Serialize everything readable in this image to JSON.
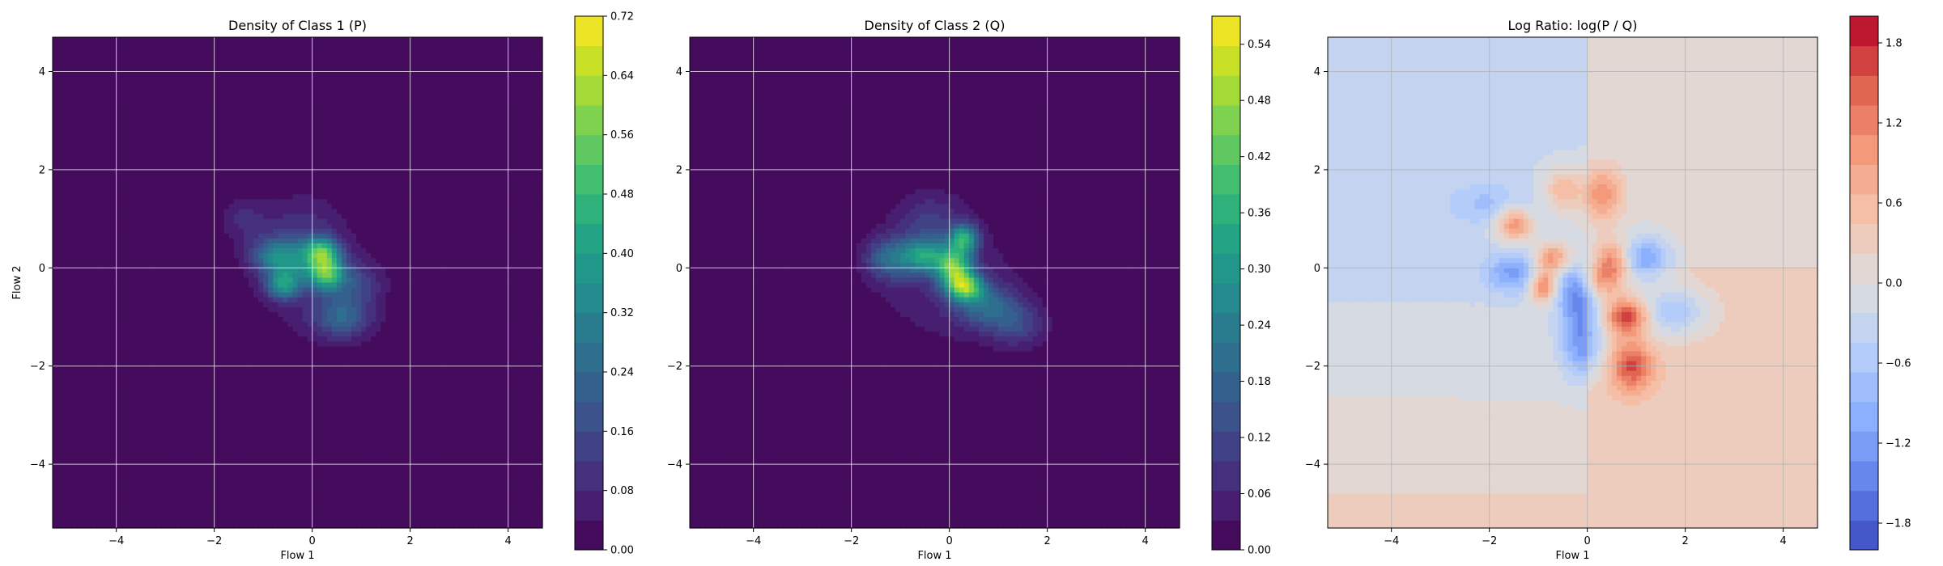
{
  "chart_data": [
    {
      "type": "heatmap",
      "title": "Density of Class 1 (P)",
      "xlabel": "Flow 1",
      "ylabel": "Flow 2",
      "xlim": [
        -5.3,
        4.7
      ],
      "ylim": [
        -5.3,
        4.7
      ],
      "xticks": [
        -4,
        -2,
        0,
        2,
        4
      ],
      "yticks": [
        -4,
        -2,
        0,
        2,
        4
      ],
      "xtick_labels": [
        "−4",
        "−2",
        "0",
        "2",
        "4"
      ],
      "ytick_labels": [
        "−4",
        "−2",
        "0",
        "2",
        "4"
      ],
      "grid": true,
      "colormap": "viridis",
      "colorbar": {
        "range": [
          0,
          0.72
        ],
        "ticks": [
          0,
          0.08,
          0.16,
          0.24,
          0.32,
          0.4,
          0.48,
          0.56,
          0.64,
          0.72
        ],
        "tick_labels": [
          "0.00",
          "0.08",
          "0.16",
          "0.24",
          "0.32",
          "0.40",
          "0.48",
          "0.56",
          "0.64",
          "0.72"
        ]
      },
      "blobs": [
        {
          "x": 0.3,
          "y": -0.1,
          "sx": 0.25,
          "sy": 0.25,
          "value": 0.45
        },
        {
          "x": 0.2,
          "y": 0.35,
          "sx": 0.25,
          "sy": 0.2,
          "value": 0.38
        },
        {
          "x": -0.6,
          "y": -0.35,
          "sx": 0.25,
          "sy": 0.2,
          "value": 0.33
        },
        {
          "x": -0.8,
          "y": 0.25,
          "sx": 0.35,
          "sy": 0.25,
          "value": 0.24
        },
        {
          "x": 0.6,
          "y": -1.0,
          "sx": 0.4,
          "sy": 0.3,
          "value": 0.2
        },
        {
          "x": -0.3,
          "y": 0.1,
          "sx": 0.35,
          "sy": 0.3,
          "value": 0.18
        },
        {
          "x": -1.4,
          "y": 1.0,
          "sx": 0.35,
          "sy": 0.3,
          "value": 0.08
        },
        {
          "x": 0.9,
          "y": -0.3,
          "sx": 0.35,
          "sy": 0.3,
          "value": 0.12
        },
        {
          "x": -0.2,
          "y": 0.8,
          "sx": 0.6,
          "sy": 0.5,
          "value": 0.09
        },
        {
          "x": 0.1,
          "y": -0.5,
          "sx": 1.0,
          "sy": 0.8,
          "value": 0.06
        }
      ]
    },
    {
      "type": "heatmap",
      "title": "Density of Class 2 (Q)",
      "xlabel": "Flow 1",
      "ylabel": "",
      "xlim": [
        -5.3,
        4.7
      ],
      "ylim": [
        -5.3,
        4.7
      ],
      "xticks": [
        -4,
        -2,
        0,
        2,
        4
      ],
      "yticks": [
        -4,
        -2,
        0,
        2,
        4
      ],
      "xtick_labels": [
        "−4",
        "−2",
        "0",
        "2",
        "4"
      ],
      "ytick_labels": [
        "−4",
        "−2",
        "0",
        "2",
        "4"
      ],
      "grid": true,
      "colormap": "viridis",
      "colorbar": {
        "range": [
          0,
          0.57
        ],
        "ticks": [
          0,
          0.06,
          0.12,
          0.18,
          0.24,
          0.3,
          0.36,
          0.42,
          0.48,
          0.54
        ],
        "tick_labels": [
          "0.00",
          "0.06",
          "0.12",
          "0.18",
          "0.24",
          "0.30",
          "0.36",
          "0.42",
          "0.48",
          "0.54"
        ]
      },
      "blobs": [
        {
          "x": 0.1,
          "y": 0.0,
          "sx": 0.25,
          "sy": 0.3,
          "value": 0.38
        },
        {
          "x": 0.35,
          "y": -0.4,
          "sx": 0.25,
          "sy": 0.2,
          "value": 0.34
        },
        {
          "x": 0.3,
          "y": 0.6,
          "sx": 0.2,
          "sy": 0.2,
          "value": 0.3
        },
        {
          "x": -0.5,
          "y": 0.25,
          "sx": 0.3,
          "sy": 0.25,
          "value": 0.26
        },
        {
          "x": -1.2,
          "y": 0.2,
          "sx": 0.35,
          "sy": 0.3,
          "value": 0.18
        },
        {
          "x": 0.8,
          "y": -0.8,
          "sx": 0.45,
          "sy": 0.3,
          "value": 0.16
        },
        {
          "x": 1.4,
          "y": -1.2,
          "sx": 0.4,
          "sy": 0.3,
          "value": 0.1
        },
        {
          "x": -0.4,
          "y": 1.0,
          "sx": 0.5,
          "sy": 0.4,
          "value": 0.08
        },
        {
          "x": 0.0,
          "y": -0.3,
          "sx": 1.1,
          "sy": 0.9,
          "value": 0.06
        }
      ]
    },
    {
      "type": "heatmap",
      "title": "Log Ratio: log(P / Q)",
      "xlabel": "Flow 1",
      "ylabel": "",
      "xlim": [
        -5.3,
        4.7
      ],
      "ylim": [
        -5.3,
        4.7
      ],
      "xticks": [
        -4,
        -2,
        0,
        2,
        4
      ],
      "yticks": [
        -4,
        -2,
        0,
        2,
        4
      ],
      "xtick_labels": [
        "−4",
        "−2",
        "0",
        "2",
        "4"
      ],
      "ytick_labels": [
        "−4",
        "−2",
        "0",
        "2",
        "4"
      ],
      "grid": true,
      "colormap": "coolwarm",
      "colorbar": {
        "range": [
          -2.0,
          2.0
        ],
        "ticks": [
          -1.8,
          -1.2,
          -0.6,
          0.0,
          0.6,
          1.2,
          1.8
        ],
        "tick_labels": [
          "−1.8",
          "−1.2",
          "−0.6",
          "0.0",
          "0.6",
          "1.2",
          "1.8"
        ]
      },
      "blobs": [
        {
          "x": -1.5,
          "y": 0.9,
          "sx": 0.25,
          "sy": 0.25,
          "value": 1.3
        },
        {
          "x": -0.7,
          "y": 0.2,
          "sx": 0.25,
          "sy": 0.2,
          "value": 1.1
        },
        {
          "x": -0.9,
          "y": -0.35,
          "sx": 0.2,
          "sy": 0.25,
          "value": 1.4
        },
        {
          "x": 0.8,
          "y": -1.0,
          "sx": 0.3,
          "sy": 0.25,
          "value": 1.6
        },
        {
          "x": 0.9,
          "y": -2.0,
          "sx": 0.3,
          "sy": 0.35,
          "value": 1.3
        },
        {
          "x": 0.3,
          "y": 1.5,
          "sx": 0.3,
          "sy": 0.4,
          "value": 1.0
        },
        {
          "x": -0.5,
          "y": 1.6,
          "sx": 0.25,
          "sy": 0.3,
          "value": 0.8
        },
        {
          "x": 0.5,
          "y": 0.1,
          "sx": 0.25,
          "sy": 0.3,
          "value": 1.2
        },
        {
          "x": -1.5,
          "y": -0.1,
          "sx": 0.4,
          "sy": 0.3,
          "value": -1.0
        },
        {
          "x": -0.2,
          "y": -0.5,
          "sx": 0.3,
          "sy": 0.4,
          "value": -1.3
        },
        {
          "x": -0.1,
          "y": -1.5,
          "sx": 0.3,
          "sy": 0.5,
          "value": -1.2
        },
        {
          "x": 1.2,
          "y": 0.2,
          "sx": 0.35,
          "sy": 0.3,
          "value": -1.1
        },
        {
          "x": 1.8,
          "y": -0.9,
          "sx": 0.5,
          "sy": 0.35,
          "value": -0.9
        },
        {
          "x": -2.0,
          "y": 1.3,
          "sx": 0.6,
          "sy": 0.3,
          "value": -0.5
        },
        {
          "x": 0.2,
          "y": -0.3,
          "sx": 0.25,
          "sy": 0.25,
          "value": 0.9
        }
      ],
      "background": {
        "left": -0.3,
        "right": 0.3,
        "top_left": -0.25,
        "bottom": 0.35
      }
    }
  ]
}
